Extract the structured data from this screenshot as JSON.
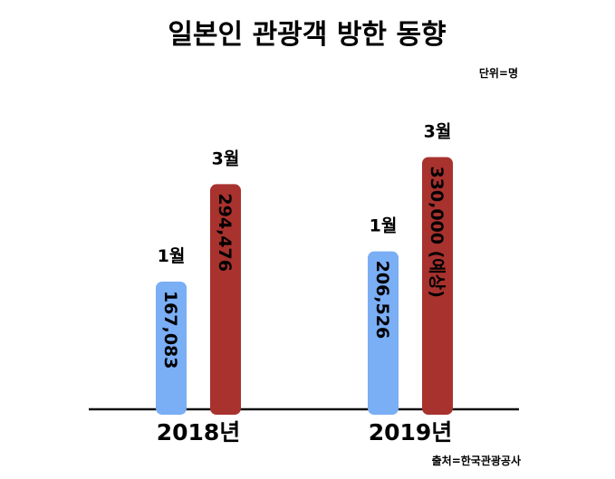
{
  "chart_data": {
    "type": "bar",
    "title": "일본인 관광객 방한 동향",
    "unit_note": "단위=명",
    "source": "출처=한국관광공사",
    "categories": [
      "2018년",
      "2019년"
    ],
    "series": [
      {
        "name": "1월",
        "color": "#7aaef5",
        "values": [
          167083,
          206526
        ],
        "labels": [
          "167,083",
          "206,526"
        ]
      },
      {
        "name": "3월",
        "color": "#a8322e",
        "values": [
          294476,
          330000
        ],
        "labels": [
          "294,476",
          "330,000 (예상)"
        ]
      }
    ],
    "ylim": [
      0,
      340000
    ],
    "grid": false,
    "legend": "none",
    "axis_color": "#111111"
  }
}
